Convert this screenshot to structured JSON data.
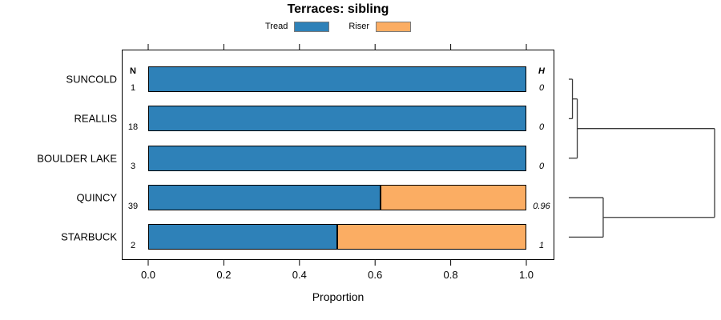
{
  "title": "Terraces: sibling",
  "legend": {
    "items": [
      {
        "label": "Tread",
        "color": "#2E81B8"
      },
      {
        "label": "Riser",
        "color": "#FBAD63"
      }
    ]
  },
  "columns": {
    "n_header": "N",
    "h_header": "H"
  },
  "axes": {
    "xlabel": "Proportion"
  },
  "chart_data": {
    "type": "bar",
    "orientation": "horizontal",
    "stacked": true,
    "title": "Terraces: sibling",
    "xlabel": "Proportion",
    "ylabel": "",
    "xlim": [
      0,
      1
    ],
    "xticks": [
      0.0,
      0.2,
      0.4,
      0.6,
      0.8,
      1.0
    ],
    "xtick_labels": [
      "0.0",
      "0.2",
      "0.4",
      "0.6",
      "0.8",
      "1.0"
    ],
    "grid": false,
    "legend_position": "top-center",
    "categories": [
      "SUNCOLD",
      "REALLIS",
      "BOULDER LAKE",
      "QUINCY",
      "STARBUCK"
    ],
    "series": [
      {
        "name": "Tread",
        "color": "#2E81B8",
        "values": [
          1.0,
          1.0,
          1.0,
          0.615,
          0.5
        ]
      },
      {
        "name": "Riser",
        "color": "#FBAD63",
        "values": [
          0.0,
          0.0,
          0.0,
          0.385,
          0.5
        ]
      }
    ],
    "n_label": "N",
    "n_values": [
      "1",
      "18",
      "3",
      "39",
      "2"
    ],
    "h_label": "H",
    "h_values": [
      "0",
      "0",
      "0",
      "0.96",
      "1"
    ],
    "dendrogram": {
      "position": "right",
      "leaves": [
        "SUNCOLD",
        "REALLIS",
        "BOULDER LAKE",
        "QUINCY",
        "STARBUCK"
      ],
      "merges": [
        {
          "a": 0,
          "b": 1,
          "height": 0.025
        },
        {
          "a": 5,
          "b": 2,
          "height": 0.058
        },
        {
          "a": 3,
          "b": 4,
          "height": 0.236
        },
        {
          "a": 6,
          "b": 7,
          "height": 1.0
        }
      ]
    }
  }
}
